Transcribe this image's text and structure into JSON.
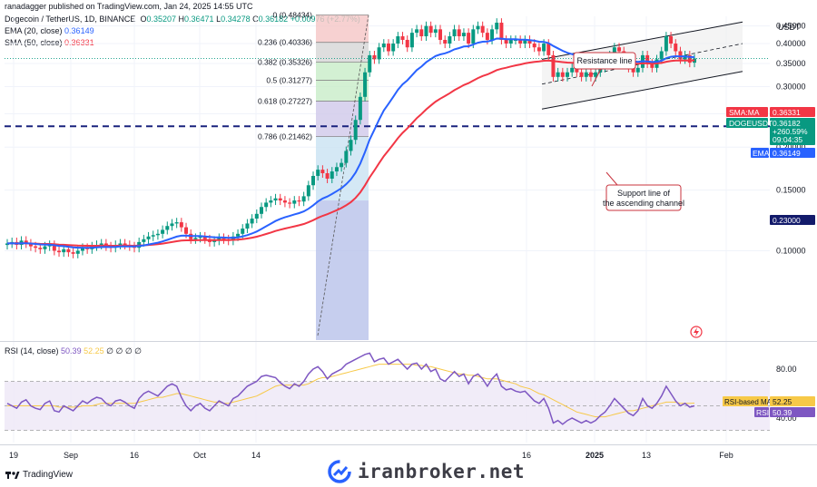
{
  "header": {
    "publisher": "ranadagger published on TradingView.com, Jan 24, 2025 14:55 UTC",
    "symbol": "Dogecoin / TetherUS, 1D, BINANCE",
    "ohlc": {
      "o_label": "O",
      "o": "0.35207",
      "h_label": "H",
      "h": "0.36471",
      "l_label": "L",
      "l": "0.34278",
      "c_label": "C",
      "c": "0.36182",
      "chg": "+0.00976 (+2.77%)"
    },
    "ema_label": "EMA (20, close)",
    "ema_value": "0.36149",
    "sma_label": "SMA (50, close)",
    "sma_value": "0.36331",
    "rsi_label": "RSI (14, close)",
    "rsi_value": "50.39",
    "rsi_ma_value": "52.25",
    "rsi_extra": "∅ ∅ ∅ ∅",
    "currency": "USDT"
  },
  "colors": {
    "up": "#089981",
    "down": "#f23645",
    "ema": "#2962ff",
    "sma": "#f23645",
    "rsi": "#7e57c2",
    "rsi_ma": "#f7c948",
    "support": "#1a237e"
  },
  "chart_data": {
    "type": "candlestick",
    "symbol": "DOGEUSDT",
    "timeframe": "1D",
    "xlabel_ticks": [
      "19",
      "Sep",
      "16",
      "Oct",
      "14",
      "16",
      "2025",
      "13",
      "Feb"
    ],
    "y_ticks": [
      "0.45000",
      "0.40000",
      "0.35000",
      "0.30000",
      "0.25000",
      "0.20000",
      "0.15000",
      "0.10000"
    ],
    "ylim": [
      0.055,
      0.48
    ],
    "ohlc_close_series": [
      0.105,
      0.106,
      0.104,
      0.107,
      0.105,
      0.103,
      0.102,
      0.101,
      0.103,
      0.104,
      0.1,
      0.099,
      0.101,
      0.099,
      0.098,
      0.1,
      0.102,
      0.101,
      0.103,
      0.104,
      0.105,
      0.103,
      0.102,
      0.104,
      0.105,
      0.104,
      0.103,
      0.102,
      0.106,
      0.108,
      0.11,
      0.111,
      0.112,
      0.115,
      0.118,
      0.12,
      0.121,
      0.117,
      0.112,
      0.108,
      0.109,
      0.11,
      0.108,
      0.106,
      0.107,
      0.109,
      0.108,
      0.107,
      0.11,
      0.112,
      0.116,
      0.12,
      0.124,
      0.128,
      0.134,
      0.138,
      0.14,
      0.142,
      0.14,
      0.138,
      0.137,
      0.14,
      0.139,
      0.144,
      0.155,
      0.165,
      0.172,
      0.168,
      0.162,
      0.17,
      0.175,
      0.18,
      0.195,
      0.21,
      0.24,
      0.28,
      0.33,
      0.37,
      0.36,
      0.39,
      0.4,
      0.38,
      0.4,
      0.42,
      0.41,
      0.39,
      0.43,
      0.44,
      0.42,
      0.45,
      0.43,
      0.44,
      0.41,
      0.4,
      0.42,
      0.44,
      0.42,
      0.43,
      0.4,
      0.44,
      0.45,
      0.43,
      0.41,
      0.44,
      0.46,
      0.41,
      0.4,
      0.41,
      0.41,
      0.4,
      0.41,
      0.4,
      0.39,
      0.38,
      0.4,
      0.37,
      0.32,
      0.33,
      0.32,
      0.33,
      0.34,
      0.33,
      0.32,
      0.33,
      0.32,
      0.33,
      0.34,
      0.35,
      0.37,
      0.39,
      0.38,
      0.36,
      0.34,
      0.33,
      0.34,
      0.37,
      0.35,
      0.34,
      0.36,
      0.38,
      0.42,
      0.4,
      0.38,
      0.36,
      0.37,
      0.352,
      0.362
    ],
    "ema_label": "EMA",
    "ema_value": "0.36149",
    "sma_label": "SMA:MA",
    "sma_value": "0.36331",
    "price_label": "DOGEUSDT",
    "price_value": "0.36182",
    "price_change": "+260.59%",
    "countdown": "09:04:35",
    "horizontal_level": "0.23000",
    "fib_levels": [
      {
        "label": "0 (0.48434)",
        "value": 0.48434
      },
      {
        "label": "0.236 (0.40336)",
        "value": 0.40336
      },
      {
        "label": "0.382 (0.35326)",
        "value": 0.35326
      },
      {
        "label": "0.5 (0.31277)",
        "value": 0.31277
      },
      {
        "label": "0.618 (0.27227)",
        "value": 0.27227
      },
      {
        "label": "0.786 (0.21462)",
        "value": 0.21462
      }
    ],
    "annotations": [
      "Resistance line",
      "Support line of the ascending channel"
    ],
    "rsi": {
      "ticks": [
        "80.00",
        "40.00"
      ],
      "rsi_ma_label": "RSI-based MA",
      "rsi_ma_value": "52.25",
      "rsi_label": "RSI",
      "rsi_value": "50.39",
      "values": [
        52,
        50,
        48,
        53,
        55,
        50,
        48,
        47,
        52,
        54,
        46,
        45,
        50,
        48,
        46,
        50,
        54,
        52,
        55,
        57,
        56,
        52,
        50,
        54,
        55,
        53,
        50,
        48,
        56,
        60,
        62,
        60,
        58,
        62,
        66,
        68,
        66,
        57,
        50,
        46,
        50,
        52,
        48,
        46,
        50,
        54,
        52,
        50,
        56,
        58,
        62,
        66,
        68,
        70,
        74,
        75,
        74,
        73,
        69,
        66,
        64,
        68,
        66,
        70,
        76,
        80,
        82,
        78,
        72,
        76,
        78,
        80,
        84,
        86,
        88,
        90,
        92,
        93,
        86,
        88,
        89,
        84,
        86,
        88,
        84,
        80,
        84,
        85,
        80,
        84,
        78,
        80,
        72,
        70,
        74,
        78,
        74,
        76,
        68,
        74,
        76,
        72,
        66,
        72,
        76,
        66,
        63,
        64,
        62,
        61,
        62,
        58,
        54,
        52,
        56,
        48,
        36,
        38,
        35,
        38,
        40,
        38,
        36,
        38,
        36,
        38,
        42,
        45,
        50,
        56,
        52,
        48,
        44,
        42,
        46,
        56,
        50,
        48,
        52,
        58,
        66,
        60,
        54,
        50,
        52,
        49,
        50
      ],
      "ma_values": [
        50,
        50,
        50,
        50,
        50,
        50,
        50,
        50,
        50,
        50,
        50,
        49,
        49,
        49,
        49,
        49,
        50,
        50,
        50,
        51,
        52,
        52,
        52,
        52,
        52,
        52,
        52,
        52,
        53,
        54,
        55,
        56,
        57,
        57,
        58,
        59,
        60,
        60,
        59,
        58,
        57,
        56,
        55,
        54,
        53,
        53,
        52,
        52,
        53,
        54,
        55,
        56,
        57,
        58,
        60,
        62,
        64,
        66,
        67,
        67,
        67,
        67,
        67,
        67,
        68,
        70,
        72,
        73,
        73,
        74,
        75,
        76,
        77,
        78,
        79,
        80,
        81,
        82,
        83,
        84,
        84,
        84,
        84,
        84,
        84,
        84,
        84,
        83,
        83,
        82,
        82,
        81,
        80,
        79,
        78,
        77,
        76,
        76,
        75,
        75,
        74,
        73,
        72,
        72,
        72,
        71,
        70,
        69,
        68,
        66,
        65,
        64,
        62,
        60,
        59,
        57,
        55,
        53,
        51,
        49,
        47,
        45,
        44,
        43,
        42,
        41,
        41,
        41,
        42,
        43,
        44,
        45,
        46,
        46,
        47,
        48,
        49,
        50,
        51,
        52,
        53,
        53,
        53,
        52,
        52,
        52,
        52.25
      ]
    }
  },
  "annotations": {
    "resistance": "Resistance line",
    "support": "Support line of the ascending channel"
  },
  "footer": {
    "brand": "TradingView",
    "watermark": "iranbroker.net"
  }
}
